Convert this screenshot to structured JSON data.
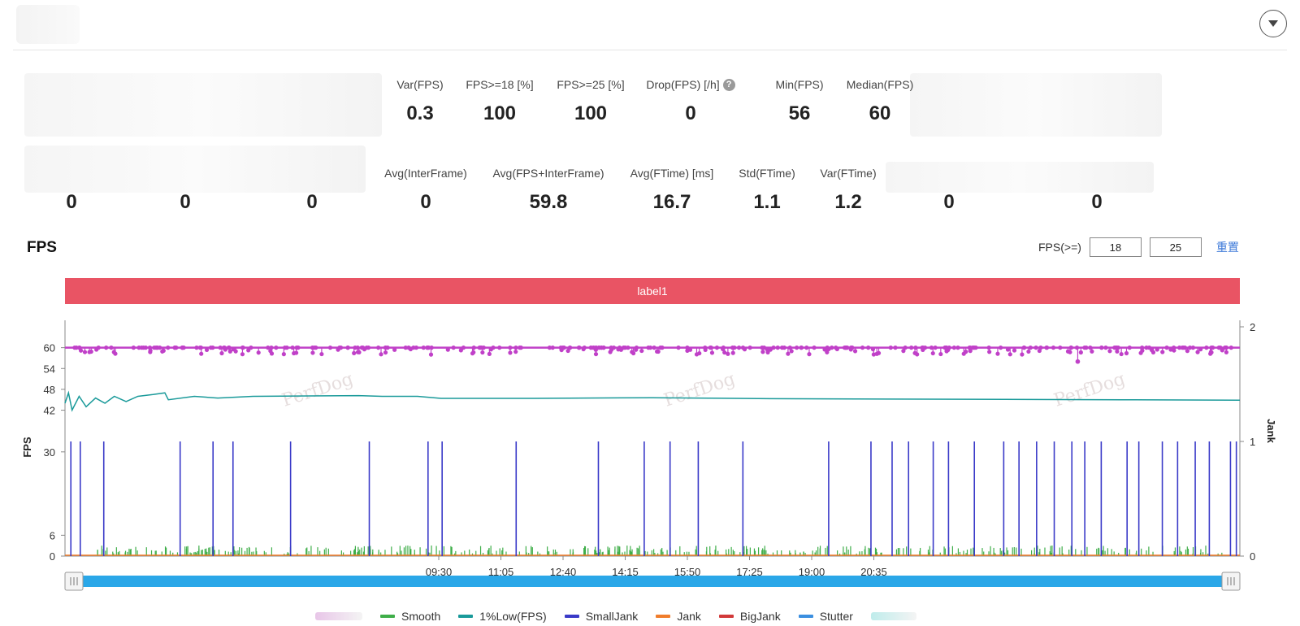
{
  "header": {
    "collapse_icon": "chevron-down-icon"
  },
  "stats_row1": [
    {
      "label": "Var(FPS)",
      "value": "0.3"
    },
    {
      "label": "FPS>=18 [%]",
      "value": "100"
    },
    {
      "label": "FPS>=25 [%]",
      "value": "100"
    },
    {
      "label": "Drop(FPS) [/h]",
      "value": "0"
    },
    {
      "label": "Min(FPS)",
      "value": "56"
    },
    {
      "label": "Median(FPS)",
      "value": "60"
    }
  ],
  "stats_row2": [
    {
      "label": "",
      "value": "0"
    },
    {
      "label": "",
      "value": "0"
    },
    {
      "label": "",
      "value": "0"
    },
    {
      "label": "Avg(InterFrame)",
      "value": "0"
    },
    {
      "label": "Avg(FPS+InterFrame)",
      "value": "59.8"
    },
    {
      "label": "Avg(FTime) [ms]",
      "value": "16.7"
    },
    {
      "label": "Std(FTime)",
      "value": "1.1"
    },
    {
      "label": "Var(FTime)",
      "value": "1.2"
    },
    {
      "label": "",
      "value": "0"
    },
    {
      "label": "",
      "value": "0"
    }
  ],
  "chart_section": {
    "title": "FPS",
    "threshold_label": "FPS(>=)",
    "threshold_low": "18",
    "threshold_high": "25",
    "reset_label": "重置",
    "label_bar": "label1",
    "watermark": "PerfDog"
  },
  "chart_data": {
    "type": "line",
    "ylabel": "FPS",
    "y2label": "Jank",
    "ylim": [
      0,
      66
    ],
    "y2lim": [
      0,
      2
    ],
    "yticks": [
      0,
      6,
      30,
      42,
      48,
      54,
      60
    ],
    "y2ticks": [
      0,
      1,
      2
    ],
    "xticks": [
      "09:30",
      "11:05",
      "12:40",
      "14:15",
      "15:50",
      "17:25",
      "19:00",
      "20:35"
    ],
    "series": [
      {
        "name": "",
        "color": "#c040c8",
        "description_values": "FPS mostly 60 with dips to 59/58, min 56"
      },
      {
        "name": "Smooth",
        "color": "#3fae49",
        "values": "small bars near 0 throughout"
      },
      {
        "name": "1%Low(FPS)",
        "color": "#1a9a9a",
        "values": "starts ~42-48 then settles ~45"
      },
      {
        "name": "SmallJank",
        "color": "#3a3ac8",
        "values": "spikes of 1 at sparse times"
      },
      {
        "name": "Jank",
        "color": "#f07d2c",
        "values": "0"
      },
      {
        "name": "BigJank",
        "color": "#d23a3a",
        "values": "0"
      },
      {
        "name": "Stutter",
        "color": "#3b8fe0",
        "values": "0"
      },
      {
        "name": "",
        "color": "#3ccfc5",
        "values": ""
      }
    ],
    "smalljank_positions": [
      0.005,
      0.013,
      0.033,
      0.098,
      0.126,
      0.143,
      0.192,
      0.259,
      0.309,
      0.321,
      0.384,
      0.454,
      0.493,
      0.515,
      0.539,
      0.577,
      0.65,
      0.686,
      0.704,
      0.718,
      0.739,
      0.752,
      0.774,
      0.799,
      0.812,
      0.827,
      0.842,
      0.857,
      0.868,
      0.882,
      0.904,
      0.914,
      0.934,
      0.947,
      0.962,
      0.974,
      0.992,
      0.997
    ],
    "grid": false,
    "legend_position": "bottom"
  },
  "legend": [
    "Smooth",
    "1%Low(FPS)",
    "SmallJank",
    "Jank",
    "BigJank",
    "Stutter"
  ],
  "colors": {
    "fps": "#c040c8",
    "smooth": "#3fae49",
    "low": "#1a9a9a",
    "smalljank": "#3a3ac8",
    "jank": "#f07d2c",
    "bigjank": "#d23a3a",
    "stutter": "#3b8fe0",
    "label_bar": "#e95464",
    "slider": "#2aa7e8"
  }
}
